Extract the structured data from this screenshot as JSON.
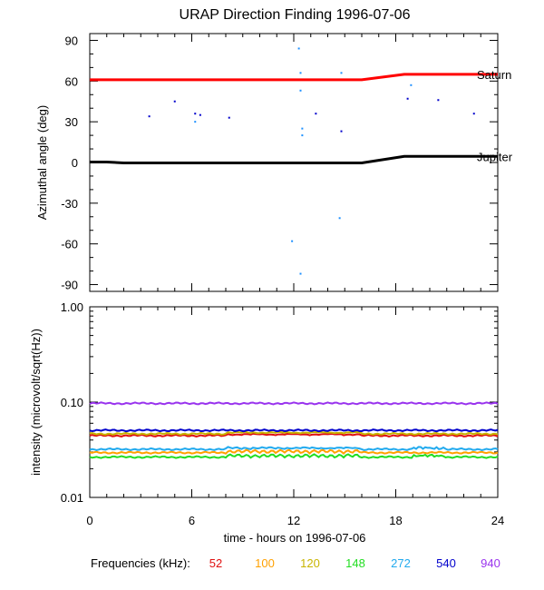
{
  "chart_data": [
    {
      "type": "scatter",
      "title": "URAP Direction Finding  1996-07-06",
      "ylabel": "Azimuthal angle (deg)",
      "xlim": [
        0,
        24
      ],
      "ylim": [
        -95,
        95
      ],
      "yticks": [
        90,
        60,
        30,
        0,
        -30,
        -60,
        -90
      ],
      "yticklabels": [
        "90",
        "60",
        "30",
        "0",
        "-30",
        "-60",
        "-90"
      ],
      "series": [
        {
          "name": "Saturn",
          "color": "#ff0000",
          "x": [
            0,
            2,
            4,
            6,
            8,
            10,
            12,
            14,
            16,
            18.5,
            20,
            22,
            24
          ],
          "y": [
            61,
            61,
            61,
            61,
            61,
            61,
            61,
            61,
            61,
            65,
            65,
            65,
            65
          ]
        },
        {
          "name": "Jupiter",
          "color": "#000000",
          "x": [
            0,
            1,
            2,
            4,
            6,
            8,
            10,
            12,
            14,
            16,
            18.5,
            20,
            22,
            24
          ],
          "y": [
            0.3,
            0.3,
            -0.3,
            -0.3,
            -0.3,
            -0.3,
            -0.3,
            -0.3,
            -0.3,
            -0.3,
            4.5,
            4.5,
            4.5,
            4.5
          ]
        },
        {
          "name": "dots-dark-blue",
          "color": "#0000cc",
          "x": [
            3.5,
            5,
            6.2,
            6.5,
            8.2,
            13.3,
            14.8,
            18.7,
            20.5,
            22.6
          ],
          "y": [
            34,
            45,
            36,
            35,
            33,
            36,
            23,
            47,
            46,
            36
          ]
        },
        {
          "name": "dots-light-blue",
          "color": "#1e90ff",
          "x": [
            12.3,
            12.4,
            12.4,
            12.5,
            12.5,
            11.9,
            12.4,
            14.8,
            14.7,
            18.9,
            6.2
          ],
          "y": [
            84,
            66,
            53,
            25,
            20,
            -58,
            -82,
            66,
            -41,
            57,
            30
          ]
        }
      ]
    },
    {
      "type": "line",
      "ylabel": "intensity (microvolt/sqrt(Hz))",
      "xlabel": "time - hours on 1996-07-06",
      "yscale": "log",
      "ylim": [
        0.01,
        1.0
      ],
      "yticks": [
        1.0,
        0.1,
        0.01
      ],
      "yticklabels": [
        "1.00",
        "0.10",
        "0.01"
      ],
      "x": [
        0,
        24
      ],
      "xticks": [
        0,
        6,
        12,
        18,
        24
      ],
      "xticklabels": [
        "0",
        "6",
        "12",
        "18",
        "24"
      ],
      "series": [
        {
          "name": "52",
          "color": "#e01010",
          "level": 0.0445
        },
        {
          "name": "100",
          "color": "#ffa000",
          "level": 0.0295
        },
        {
          "name": "120",
          "color": "#c8b400",
          "level": 0.0465
        },
        {
          "name": "148",
          "color": "#22dd22",
          "level": 0.0265
        },
        {
          "name": "272",
          "color": "#22aaee",
          "level": 0.032
        },
        {
          "name": "540",
          "color": "#0000cc",
          "level": 0.0505
        },
        {
          "name": "940",
          "color": "#9933ee",
          "level": 0.097
        }
      ],
      "legend_title": "Frequencies (kHz):"
    }
  ]
}
